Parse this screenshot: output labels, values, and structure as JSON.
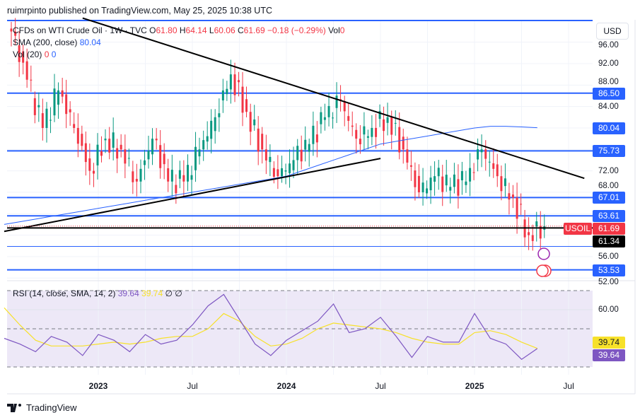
{
  "header": {
    "published": "ruimrpinto published on TradingView.com, May 25, 2025 10:38 UTC"
  },
  "legend": {
    "symbol": "CFDs on WTI Crude Oil · 1W · TVC",
    "o_label": "O",
    "o": "61.80",
    "h_label": "H",
    "h": "64.14",
    "l_label": "L",
    "l": "60.06",
    "c_label": "C",
    "c": "61.69",
    "change": "−0.18 (−0.29%)",
    "vol_label": "Vol",
    "vol": "0",
    "sma_label": "SMA (200, close)",
    "sma_value": "80.04",
    "vol20_label": "Vol (20)",
    "vol20_a": "0",
    "vol20_b": "0",
    "rsi_label": "RSI (14, close, SMA, 14, 2)",
    "rsi_value": "39.64",
    "rsi_sma_value": "39.74",
    "rsi_extra": "∅ ∅"
  },
  "currency_button": "USD",
  "colors": {
    "up": "#089981",
    "down": "#f23645",
    "level": "#2962ff",
    "sma": "#2962ff",
    "rsi": "#7e57c2",
    "rsi_sma": "#f7e12a",
    "rsi_bg": "#ede8f7"
  },
  "chart_data": [
    {
      "type": "candlestick",
      "title": "CFDs on WTI Crude Oil · 1W · TVC",
      "ylim": [
        51,
        101
      ],
      "y_ticks": [
        "96.00",
        "92.00",
        "88.00",
        "84.00",
        "72.00",
        "68.00",
        "56.00",
        "52.00"
      ],
      "x_ticks": [
        {
          "label": "2023",
          "bold": true,
          "date": "2023-01"
        },
        {
          "label": "Jul",
          "bold": false,
          "date": "2023-07"
        },
        {
          "label": "2024",
          "bold": true,
          "date": "2024-01"
        },
        {
          "label": "Jul",
          "bold": false,
          "date": "2024-07"
        },
        {
          "label": "2025",
          "bold": true,
          "date": "2025-01"
        },
        {
          "label": "Jul",
          "bold": false,
          "date": "2025-07"
        }
      ],
      "x": [
        "2022-07",
        "2022-08",
        "2022-09",
        "2022-10",
        "2022-11",
        "2022-12",
        "2023-01",
        "2023-02",
        "2023-03",
        "2023-04",
        "2023-05",
        "2023-06",
        "2023-07",
        "2023-08",
        "2023-09",
        "2023-10",
        "2023-11",
        "2023-12",
        "2024-01",
        "2024-02",
        "2024-03",
        "2024-04",
        "2024-05",
        "2024-06",
        "2024-07",
        "2024-08",
        "2024-09",
        "2024-10",
        "2024-11",
        "2024-12",
        "2025-01",
        "2025-02",
        "2025-03",
        "2025-04",
        "2025-05"
      ],
      "close": [
        98,
        89,
        80,
        87,
        80,
        72,
        78,
        76,
        70,
        78,
        70,
        70,
        76,
        82,
        90,
        83,
        76,
        71,
        74,
        77,
        82,
        85,
        78,
        80,
        82,
        76,
        68,
        71,
        69,
        70,
        76,
        71,
        67,
        60,
        61.69
      ],
      "sma200": [
        62,
        62.5,
        63,
        63.5,
        64,
        64.5,
        65,
        65.5,
        66,
        66.5,
        67,
        67.5,
        68,
        68.5,
        69,
        69.5,
        70,
        70.5,
        71,
        72,
        73,
        74,
        75,
        76,
        77,
        77.5,
        78,
        78.5,
        79,
        79.5,
        80,
        80.3,
        80.3,
        80.2,
        80.04
      ],
      "levels": [
        {
          "value": "86.50"
        },
        {
          "value": "80.04"
        },
        {
          "value": "75.73"
        },
        {
          "value": "67.01"
        },
        {
          "value": "63.61"
        },
        {
          "value": "53.53"
        }
      ],
      "last_price": {
        "symbol": "USOIL",
        "value": "61.69"
      },
      "dotted_level": "61.34",
      "trendlines": [
        {
          "from": [
            "2022-12",
            100.5
          ],
          "to": [
            "2025-08",
            70.6
          ]
        },
        {
          "from": [
            "2022-07",
            60.7
          ],
          "to": [
            "2024-07",
            74.3
          ]
        }
      ]
    },
    {
      "type": "line",
      "title": "RSI (14, close, SMA, 14, 2)",
      "ylim": [
        25,
        75
      ],
      "y_ticks": [
        "60.00"
      ],
      "bands": [
        70,
        50,
        30
      ],
      "series": [
        {
          "name": "RSI",
          "values": [
            45,
            42,
            38,
            46,
            43,
            36,
            47,
            44,
            38,
            47,
            42,
            44,
            52,
            62,
            68,
            55,
            42,
            36,
            44,
            49,
            54,
            63,
            48,
            50,
            56,
            46,
            35,
            46,
            43,
            43,
            58,
            45,
            42,
            34,
            39.64
          ]
        },
        {
          "name": "SMA",
          "values": [
            61,
            52,
            44,
            41,
            41,
            41,
            42,
            43,
            42,
            43,
            45,
            46,
            46,
            50,
            58,
            54,
            46,
            41,
            42,
            45,
            50,
            53,
            52,
            51,
            50,
            48,
            45,
            43,
            42,
            42,
            48,
            49,
            47,
            43,
            39.74
          ]
        }
      ]
    }
  ],
  "footer": {
    "brand": "TradingView"
  }
}
